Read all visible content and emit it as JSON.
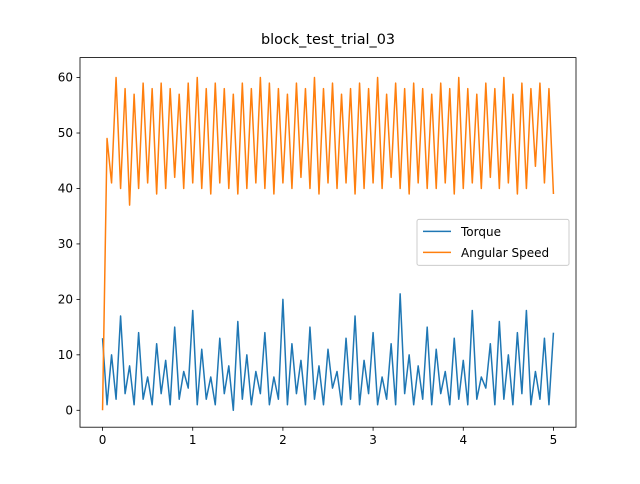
{
  "chart_data": {
    "type": "line",
    "title": "block_test_trial_03",
    "x": [
      0,
      0.05,
      0.1,
      0.15,
      0.2,
      0.25,
      0.3,
      0.35,
      0.4,
      0.45,
      0.5,
      0.55,
      0.6,
      0.65,
      0.7,
      0.75,
      0.8,
      0.85,
      0.9,
      0.95,
      1,
      1.05,
      1.1,
      1.15,
      1.2,
      1.25,
      1.3,
      1.35,
      1.4,
      1.45,
      1.5,
      1.55,
      1.6,
      1.65,
      1.7,
      1.75,
      1.8,
      1.85,
      1.9,
      1.95,
      2,
      2.05,
      2.1,
      2.15,
      2.2,
      2.25,
      2.3,
      2.35,
      2.4,
      2.45,
      2.5,
      2.55,
      2.6,
      2.65,
      2.7,
      2.75,
      2.8,
      2.85,
      2.9,
      2.95,
      3,
      3.05,
      3.1,
      3.15,
      3.2,
      3.25,
      3.3,
      3.35,
      3.4,
      3.45,
      3.5,
      3.55,
      3.6,
      3.65,
      3.7,
      3.75,
      3.8,
      3.85,
      3.9,
      3.95,
      4,
      4.05,
      4.1,
      4.15,
      4.2,
      4.25,
      4.3,
      4.35,
      4.4,
      4.45,
      4.5,
      4.55,
      4.6,
      4.65,
      4.7,
      4.75,
      4.8,
      4.85,
      4.9,
      4.95,
      5
    ],
    "series": [
      {
        "name": "Torque",
        "color": "#1f77b4",
        "values": [
          13,
          1,
          10,
          2,
          17,
          3,
          8,
          1,
          14,
          2,
          6,
          1,
          12,
          3,
          9,
          1,
          15,
          2,
          7,
          4,
          18,
          1,
          11,
          2,
          6,
          1,
          13,
          3,
          8,
          0,
          16,
          2,
          10,
          1,
          7,
          3,
          14,
          1,
          6,
          2,
          20,
          1,
          12,
          3,
          9,
          1,
          15,
          2,
          8,
          1,
          11,
          4,
          7,
          1,
          13,
          2,
          17,
          1,
          9,
          3,
          14,
          1,
          6,
          2,
          12,
          1,
          21,
          3,
          10,
          1,
          8,
          2,
          15,
          1,
          11,
          3,
          7,
          1,
          13,
          2,
          9,
          1,
          18,
          2,
          6,
          4,
          12,
          1,
          16,
          2,
          10,
          1,
          14,
          3,
          18,
          1,
          7,
          2,
          13,
          1,
          14
        ]
      },
      {
        "name": "Angular Speed",
        "color": "#ff7f0e",
        "values": [
          0,
          49,
          41,
          60,
          40,
          58,
          37,
          57,
          40,
          59,
          41,
          58,
          39,
          59,
          40,
          58,
          42,
          57,
          40,
          59,
          41,
          60,
          40,
          58,
          39,
          59,
          41,
          58,
          40,
          57,
          39,
          59,
          40,
          58,
          41,
          60,
          40,
          59,
          39,
          58,
          41,
          57,
          40,
          59,
          42,
          58,
          40,
          60,
          39,
          58,
          41,
          59,
          40,
          57,
          41,
          58,
          39,
          59,
          40,
          58,
          41,
          60,
          40,
          57,
          42,
          59,
          40,
          58,
          39,
          59,
          41,
          58,
          40,
          57,
          40,
          59,
          41,
          58,
          39,
          60,
          40,
          58,
          41,
          57,
          40,
          59,
          42,
          58,
          40,
          60,
          41,
          57,
          39,
          59,
          40,
          58,
          44,
          59,
          41,
          58,
          39
        ]
      }
    ],
    "xlim": [
      -0.25,
      5.25
    ],
    "ylim": [
      -3.05,
      63.6
    ],
    "xticks": [
      0,
      1,
      2,
      3,
      4,
      5
    ],
    "yticks": [
      0,
      10,
      20,
      30,
      40,
      50,
      60
    ],
    "legend": "center right"
  }
}
